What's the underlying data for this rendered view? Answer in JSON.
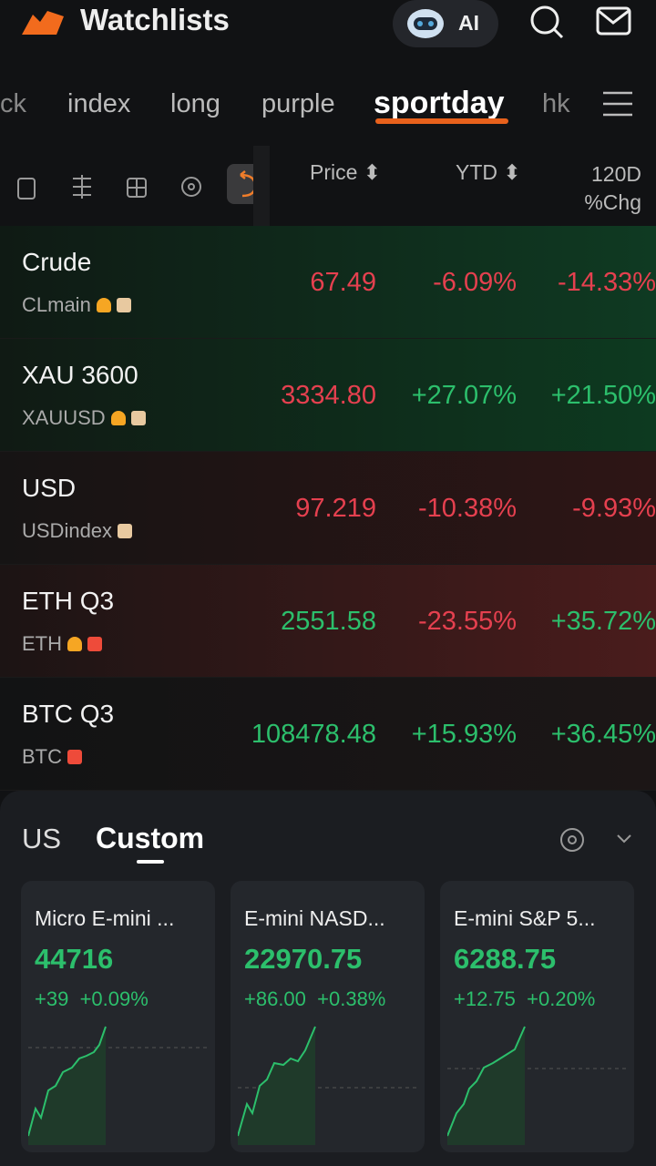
{
  "header": {
    "title": "Watchlists",
    "ai": "AI"
  },
  "tabs": [
    "ck",
    "index",
    "long",
    "purple",
    "sportday",
    "hk"
  ],
  "columns": [
    "Price",
    "YTD",
    "120D %Chg"
  ],
  "rows": [
    {
      "name": "Crude",
      "code": "CLmain",
      "price": "67.49",
      "ytd": "-6.09%",
      "chg": "-14.33%"
    },
    {
      "name": "XAU 3600",
      "code": "XAUUSD",
      "price": "3334.80",
      "ytd": "+27.07%",
      "chg": "+21.50%"
    },
    {
      "name": "USD",
      "code": "USDindex",
      "price": "97.219",
      "ytd": "-10.38%",
      "chg": "-9.93%"
    },
    {
      "name": "ETH Q3",
      "code": "ETH",
      "price": "2551.58",
      "ytd": "-23.55%",
      "chg": "+35.72%"
    },
    {
      "name": "BTC Q3",
      "code": "BTC",
      "price": "108478.48",
      "ytd": "+15.93%",
      "chg": "+36.45%"
    }
  ],
  "panel": {
    "tabs": [
      "US",
      "Custom"
    ],
    "cards": [
      {
        "name": "Micro E-mini ...",
        "price": "44716",
        "change": "+39",
        "pct": "+0.09%"
      },
      {
        "name": "E-mini NASD...",
        "price": "22970.75",
        "change": "+86.00",
        "pct": "+0.38%"
      },
      {
        "name": "E-mini S&P 5...",
        "price": "6288.75",
        "change": "+12.75",
        "pct": "+0.20%"
      }
    ]
  }
}
